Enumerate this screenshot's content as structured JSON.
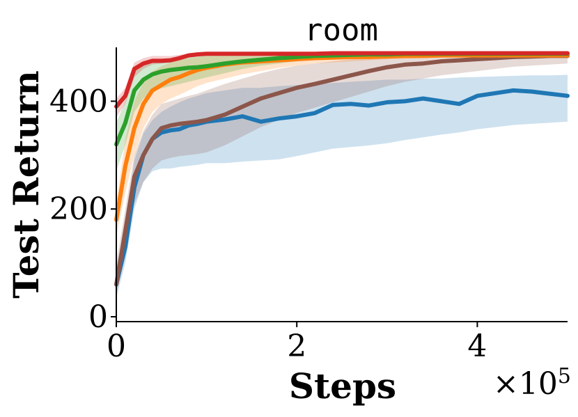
{
  "chart_data": {
    "type": "line",
    "title": "room",
    "xlabel": "Steps",
    "ylabel": "Test Return",
    "x_multiplier": "×10",
    "x_multiplier_exp": "5",
    "xlim": [
      0,
      500000
    ],
    "ylim": [
      0,
      500
    ],
    "xticks": [
      0,
      200000,
      400000
    ],
    "xtick_labels": [
      "0",
      "2",
      "4"
    ],
    "yticks": [
      0,
      200,
      400
    ],
    "ytick_labels": [
      "0",
      "200",
      "400"
    ],
    "grid": false,
    "series": [
      {
        "color": "#1f77b4",
        "x": [
          0,
          10000,
          20000,
          30000,
          40000,
          50000,
          60000,
          70000,
          80000,
          90000,
          100000,
          120000,
          140000,
          160000,
          180000,
          200000,
          220000,
          240000,
          260000,
          280000,
          300000,
          320000,
          340000,
          360000,
          380000,
          400000,
          420000,
          440000,
          460000,
          480000,
          500000
        ],
        "mean": [
          60,
          130,
          240,
          300,
          330,
          342,
          346,
          348,
          355,
          358,
          362,
          366,
          372,
          362,
          368,
          372,
          378,
          393,
          395,
          392,
          398,
          400,
          405,
          400,
          395,
          410,
          415,
          420,
          418,
          414,
          410
        ],
        "lower": [
          35,
          100,
          200,
          250,
          270,
          275,
          275,
          278,
          280,
          282,
          285,
          285,
          288,
          290,
          292,
          298,
          305,
          312,
          315,
          318,
          322,
          328,
          333,
          338,
          342,
          348,
          352,
          356,
          358,
          360,
          362
        ],
        "upper": [
          90,
          170,
          290,
          340,
          365,
          380,
          390,
          398,
          405,
          410,
          415,
          420,
          425,
          425,
          428,
          430,
          432,
          434,
          436,
          438,
          440,
          440,
          442,
          442,
          444,
          445,
          446,
          447,
          448,
          448,
          449
        ]
      },
      {
        "color": "#8c564b",
        "x": [
          0,
          10000,
          20000,
          30000,
          40000,
          50000,
          60000,
          70000,
          80000,
          90000,
          100000,
          120000,
          140000,
          160000,
          180000,
          200000,
          220000,
          240000,
          260000,
          280000,
          300000,
          320000,
          340000,
          360000,
          380000,
          400000,
          420000,
          440000,
          460000,
          480000,
          500000
        ],
        "mean": [
          60,
          160,
          260,
          300,
          330,
          350,
          355,
          358,
          360,
          362,
          365,
          375,
          390,
          405,
          415,
          425,
          432,
          440,
          448,
          456,
          463,
          468,
          470,
          474,
          476,
          478,
          480,
          482,
          483,
          484,
          484
        ],
        "lower": [
          40,
          120,
          210,
          250,
          275,
          290,
          295,
          298,
          300,
          302,
          305,
          318,
          335,
          352,
          365,
          378,
          388,
          398,
          408,
          418,
          428,
          436,
          442,
          448,
          452,
          456,
          460,
          464,
          466,
          468,
          470
        ],
        "upper": [
          100,
          200,
          300,
          345,
          375,
          395,
          400,
          405,
          410,
          414,
          420,
          432,
          442,
          452,
          460,
          466,
          470,
          474,
          478,
          481,
          484,
          486,
          488,
          488,
          489,
          489,
          490,
          490,
          490,
          490,
          490
        ]
      },
      {
        "color": "#ff7f0e",
        "x": [
          0,
          10000,
          20000,
          30000,
          40000,
          50000,
          60000,
          70000,
          80000,
          90000,
          100000,
          120000,
          140000,
          160000,
          180000,
          200000,
          220000,
          240000,
          260000,
          280000,
          300000,
          320000,
          340000,
          360000,
          380000,
          400000,
          420000,
          440000,
          460000,
          480000,
          500000
        ],
        "mean": [
          180,
          280,
          350,
          395,
          420,
          430,
          440,
          445,
          452,
          458,
          462,
          468,
          472,
          474,
          476,
          478,
          480,
          481,
          482,
          482,
          483,
          484,
          484,
          485,
          485,
          485,
          485,
          485,
          485,
          485,
          485
        ],
        "lower": [
          150,
          230,
          300,
          350,
          380,
          395,
          405,
          412,
          420,
          428,
          434,
          442,
          450,
          456,
          462,
          466,
          470,
          472,
          474,
          476,
          478,
          479,
          480,
          481,
          481,
          482,
          482,
          482,
          482,
          482,
          482
        ],
        "upper": [
          210,
          330,
          400,
          435,
          455,
          465,
          472,
          476,
          480,
          482,
          484,
          486,
          487,
          488,
          488,
          488,
          488,
          488,
          488,
          488,
          488,
          488,
          488,
          488,
          488,
          488,
          488,
          488,
          488,
          488,
          488
        ]
      },
      {
        "color": "#2ca02c",
        "x": [
          0,
          10000,
          20000,
          30000,
          40000,
          50000,
          60000,
          70000,
          80000,
          90000,
          100000,
          120000,
          140000,
          160000,
          180000,
          200000,
          220000,
          240000,
          260000,
          280000,
          300000,
          320000,
          340000,
          360000,
          380000,
          400000,
          420000,
          440000,
          460000,
          480000,
          500000
        ],
        "mean": [
          320,
          360,
          420,
          440,
          450,
          455,
          458,
          460,
          462,
          463,
          465,
          470,
          474,
          477,
          480,
          482,
          484,
          485,
          486,
          487,
          487,
          488,
          488,
          488,
          488,
          488,
          488,
          488,
          488,
          488,
          488
        ],
        "lower": [
          270,
          320,
          380,
          405,
          418,
          424,
          428,
          432,
          436,
          440,
          444,
          452,
          460,
          466,
          470,
          474,
          478,
          480,
          482,
          484,
          485,
          486,
          486,
          486,
          486,
          486,
          486,
          486,
          486,
          486,
          486
        ],
        "upper": [
          360,
          400,
          455,
          470,
          476,
          478,
          480,
          482,
          484,
          485,
          486,
          487,
          488,
          488,
          488,
          488,
          488,
          488,
          488,
          488,
          488,
          488,
          488,
          488,
          488,
          488,
          488,
          488,
          488,
          488,
          488
        ]
      },
      {
        "color": "#d62728",
        "x": [
          0,
          10000,
          20000,
          30000,
          40000,
          50000,
          60000,
          70000,
          80000,
          90000,
          100000,
          120000,
          140000,
          160000,
          180000,
          200000,
          220000,
          240000,
          260000,
          280000,
          300000,
          320000,
          340000,
          360000,
          380000,
          400000,
          420000,
          440000,
          460000,
          480000,
          500000
        ],
        "mean": [
          390,
          410,
          460,
          470,
          475,
          475,
          476,
          480,
          485,
          487,
          488,
          488,
          488,
          488,
          488,
          488,
          488,
          489,
          489,
          489,
          489,
          489,
          489,
          489,
          489,
          489,
          489,
          489,
          489,
          489,
          489
        ],
        "lower": [
          370,
          395,
          445,
          460,
          468,
          470,
          472,
          476,
          482,
          484,
          486,
          486,
          486,
          486,
          486,
          486,
          486,
          487,
          487,
          487,
          487,
          487,
          487,
          487,
          487,
          487,
          487,
          487,
          487,
          487,
          487
        ],
        "upper": [
          405,
          425,
          472,
          480,
          484,
          484,
          484,
          486,
          488,
          489,
          490,
          490,
          490,
          490,
          490,
          490,
          490,
          490,
          490,
          490,
          490,
          490,
          490,
          490,
          490,
          490,
          490,
          490,
          490,
          490,
          490
        ]
      }
    ]
  }
}
